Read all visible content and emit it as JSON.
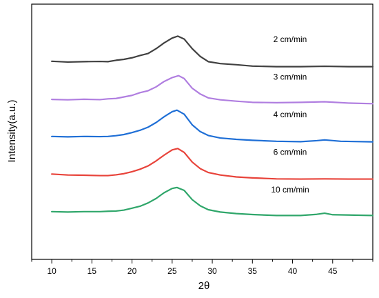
{
  "chart_data": {
    "type": "line",
    "xlabel": "2θ",
    "ylabel": "Intensity(a.u.)",
    "xlim": [
      7.5,
      50
    ],
    "x_ticks": [
      10,
      15,
      20,
      25,
      30,
      35,
      40,
      45
    ],
    "y_ticks": false,
    "grid": false,
    "legend": "inline labels right of curves",
    "series": [
      {
        "name": "2 cm/min",
        "color": "#404040",
        "baseline": 4,
        "x": [
          10,
          12,
          14,
          16,
          17,
          18,
          19,
          20,
          21,
          22,
          23,
          24,
          25,
          25.7,
          26.5,
          27.5,
          28.5,
          29.5,
          31,
          33,
          35,
          38,
          41,
          44,
          47,
          50
        ],
        "y": [
          0.3,
          0.26,
          0.28,
          0.29,
          0.28,
          0.35,
          0.4,
          0.48,
          0.6,
          0.7,
          0.95,
          1.25,
          1.5,
          1.6,
          1.45,
          0.95,
          0.55,
          0.28,
          0.18,
          0.12,
          0.05,
          0.02,
          0.02,
          0.04,
          0.02,
          0.02
        ]
      },
      {
        "name": "3 cm/min",
        "color": "#b07ee0",
        "baseline": 3,
        "x": [
          10,
          12,
          14,
          16,
          17,
          18,
          19,
          20,
          21,
          22,
          23,
          24,
          25,
          25.8,
          26.5,
          27.5,
          28.5,
          29.5,
          31,
          33,
          35,
          38,
          41,
          44,
          47,
          50
        ],
        "y": [
          0.27,
          0.25,
          0.28,
          0.26,
          0.3,
          0.32,
          0.4,
          0.48,
          0.62,
          0.72,
          0.92,
          1.2,
          1.4,
          1.5,
          1.35,
          0.85,
          0.55,
          0.35,
          0.25,
          0.18,
          0.12,
          0.1,
          0.12,
          0.15,
          0.08,
          0.05
        ]
      },
      {
        "name": "4 cm/min",
        "color": "#1f6fd6",
        "baseline": 2,
        "x": [
          10,
          12,
          14,
          16,
          17,
          18,
          19,
          20,
          21,
          22,
          23,
          24,
          25,
          25.6,
          26.5,
          27.5,
          28.5,
          29.5,
          31,
          33,
          35,
          38,
          41,
          43,
          44,
          46,
          50
        ],
        "y": [
          0.3,
          0.28,
          0.3,
          0.29,
          0.3,
          0.34,
          0.4,
          0.5,
          0.62,
          0.78,
          1.02,
          1.32,
          1.58,
          1.66,
          1.45,
          0.9,
          0.55,
          0.35,
          0.22,
          0.15,
          0.1,
          0.05,
          0.03,
          0.08,
          0.12,
          0.05,
          0.02
        ]
      },
      {
        "name": "6 cm/min",
        "color": "#e8433a",
        "baseline": 1,
        "x": [
          10,
          12,
          14,
          16,
          17,
          18,
          19,
          20,
          21,
          22,
          23,
          24,
          25,
          25.7,
          26.5,
          27.5,
          28.5,
          29.5,
          31,
          33,
          35,
          38,
          41,
          44,
          47,
          50
        ],
        "y": [
          0.3,
          0.25,
          0.24,
          0.22,
          0.22,
          0.26,
          0.32,
          0.42,
          0.55,
          0.72,
          0.98,
          1.28,
          1.55,
          1.62,
          1.42,
          0.92,
          0.58,
          0.38,
          0.25,
          0.15,
          0.1,
          0.05,
          0.04,
          0.05,
          0.04,
          0.04
        ]
      },
      {
        "name": "10 cm/min",
        "color": "#2fa66a",
        "baseline": 0,
        "x": [
          10,
          12,
          14,
          16,
          17,
          18,
          19,
          20,
          21,
          22,
          23,
          24,
          25,
          25.6,
          26.5,
          27.5,
          28.5,
          29.5,
          31,
          33,
          35,
          38,
          41,
          43,
          44,
          45,
          50
        ],
        "y": [
          0.3,
          0.28,
          0.3,
          0.3,
          0.32,
          0.33,
          0.38,
          0.48,
          0.58,
          0.75,
          0.98,
          1.28,
          1.5,
          1.55,
          1.4,
          0.92,
          0.6,
          0.4,
          0.28,
          0.2,
          0.15,
          0.1,
          0.1,
          0.16,
          0.22,
          0.14,
          0.1
        ]
      }
    ]
  }
}
